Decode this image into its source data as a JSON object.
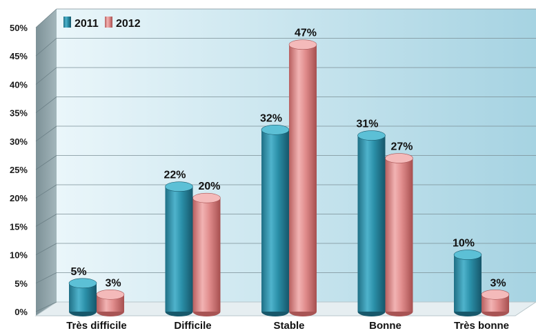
{
  "chart_data": {
    "type": "bar",
    "categories": [
      "Très difficile",
      "Difficile",
      "Stable",
      "Bonne",
      "Très bonne"
    ],
    "series": [
      {
        "name": "2011",
        "values": [
          5,
          22,
          32,
          31,
          10
        ],
        "labels": [
          "5%",
          "22%",
          "32%",
          "31%",
          "10%"
        ],
        "color": "#2a8fa8"
      },
      {
        "name": "2012",
        "values": [
          3,
          20,
          47,
          27,
          3
        ],
        "labels": [
          "3%",
          "20%",
          "47%",
          "27%",
          "3%"
        ],
        "color": "#e08c8c"
      }
    ],
    "yticks": [
      "0%",
      "5%",
      "10%",
      "15%",
      "20%",
      "25%",
      "30%",
      "35%",
      "40%",
      "45%",
      "50%"
    ],
    "ylim": [
      0,
      50
    ],
    "grid": true,
    "legend": "top-left",
    "colors": {
      "wall_light": "#e4f3f8",
      "wall_dark": "#9fd0e0",
      "side_wall": "#8a9ea4",
      "floor": "#e6eef1"
    }
  }
}
